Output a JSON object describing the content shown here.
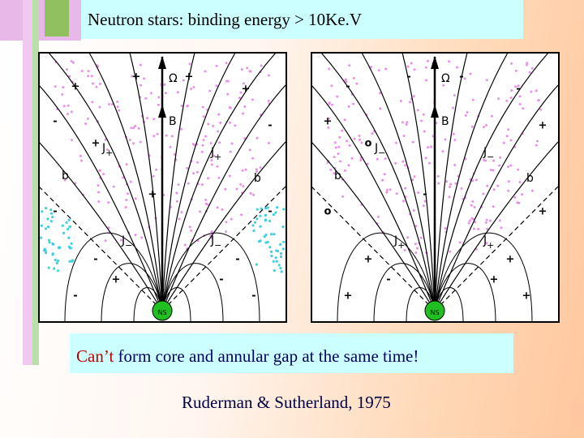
{
  "title": "Neutron stars: binding energy  > 10Ke.V",
  "panels": [
    {
      "labels": [
        {
          "text": "Ω"
        },
        {
          "text": "B"
        },
        {
          "text": "J",
          "sub": "+"
        },
        {
          "text": "J",
          "sub": "+"
        },
        {
          "text": "b"
        },
        {
          "text": "b"
        },
        {
          "text": "J",
          "sub": "−"
        },
        {
          "text": "J",
          "sub": "−"
        },
        {
          "text": "NS"
        }
      ],
      "signs": [
        "+",
        "+",
        "+",
        "+",
        "+",
        "-",
        "-",
        "+",
        "-",
        "-",
        "-",
        "-",
        "-",
        "-",
        "+",
        "-"
      ]
    },
    {
      "labels": [
        {
          "text": "Ω"
        },
        {
          "text": "B"
        },
        {
          "text": "J",
          "sub": "−"
        },
        {
          "text": "J",
          "sub": "−"
        },
        {
          "text": "b"
        },
        {
          "text": "b"
        },
        {
          "text": "J",
          "sub": "+"
        },
        {
          "text": "J",
          "sub": "+"
        },
        {
          "text": "NS"
        }
      ],
      "signs": [
        "-",
        "-",
        "-",
        "-",
        "-",
        "+",
        "+",
        "o",
        "o",
        "+",
        "+",
        "+",
        "+",
        "+",
        "-",
        "+"
      ]
    }
  ],
  "caption": {
    "highlight": "Can’t",
    "rest": " form core and annular gap at the same time!"
  },
  "citation": "Ruderman & Sutherland, 1975"
}
